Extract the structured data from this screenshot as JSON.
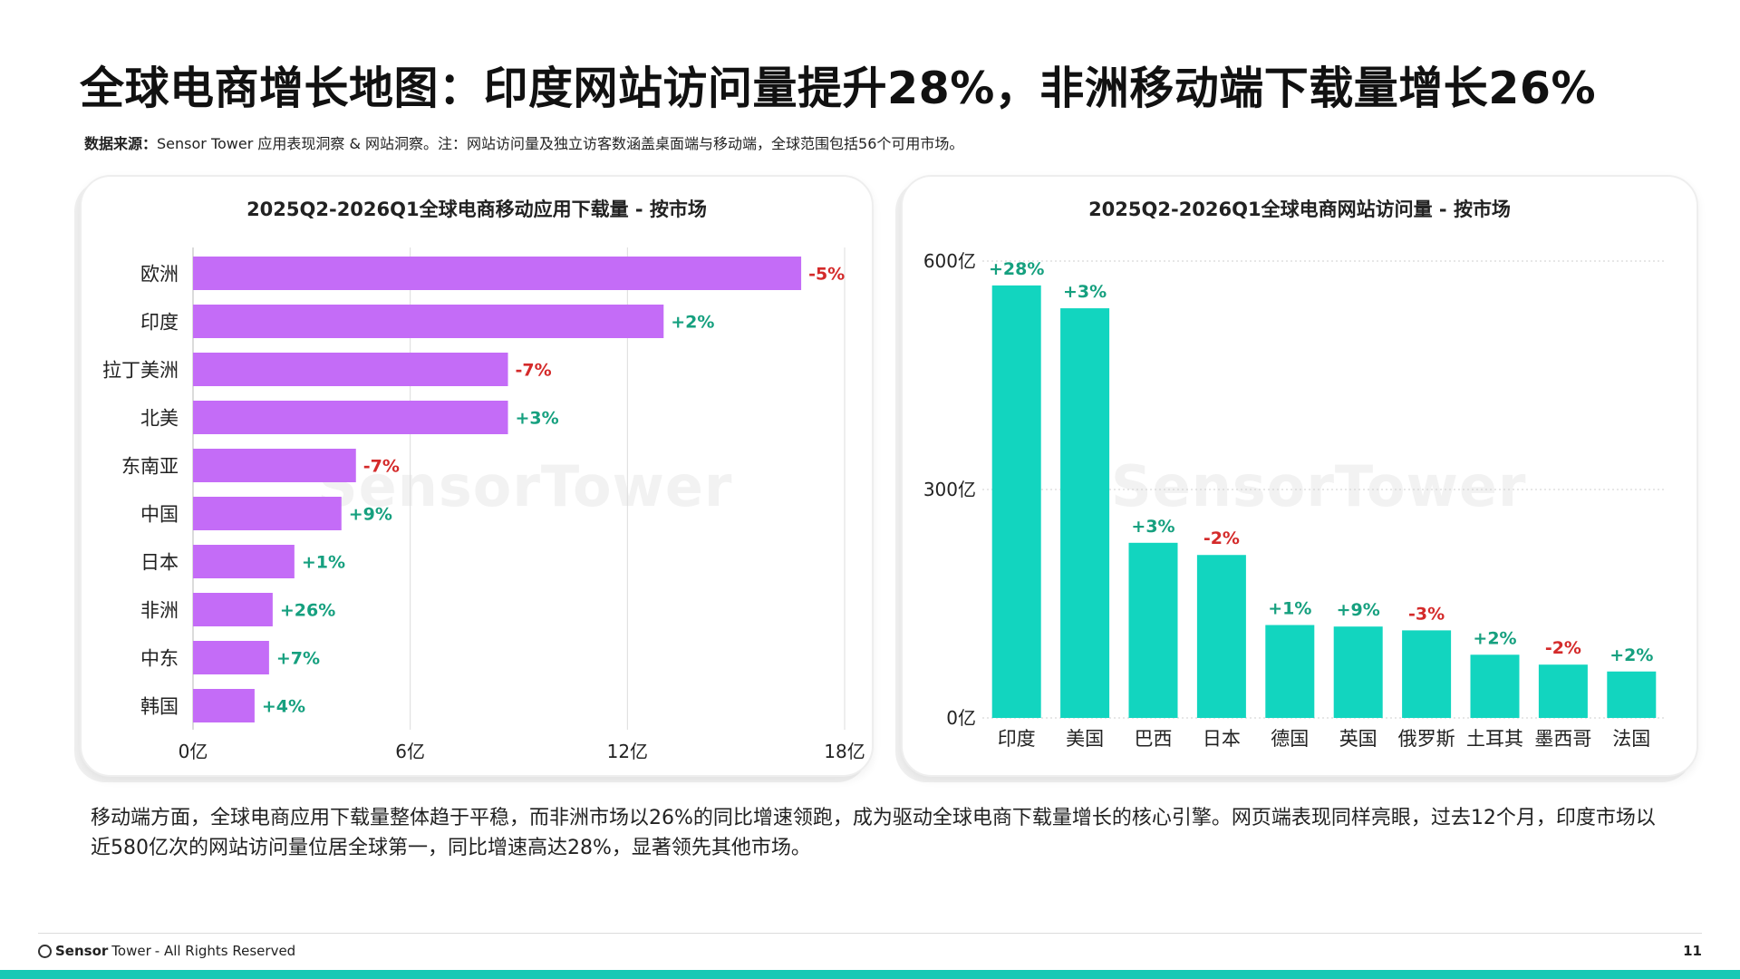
{
  "title": "全球电商增长地图：印度网站访问量提升28%，非洲移动端下载量增长26%",
  "source": {
    "lead": "数据来源：",
    "text": "Sensor Tower 应用表现洞察 & 网站洞察。注：网站访问量及独立访客数涵盖桌面端与移动端，全球范围包括56个可用市场。"
  },
  "summary": "移动端方面，全球电商应用下载量整体趋于平稳，而非洲市场以26%的同比增速领跑，成为驱动全球电商下载量增长的核心引擎。网页端表现同样亮眼，过去12个月，印度市场以近580亿次的网站访问量位居全球第一，同比增速高达28%，显著领先其他市场。",
  "watermark": "SensorTower",
  "footer": {
    "brand_bold": "Sensor",
    "brand_rest": "Tower",
    "rights": " - All Rights Reserved",
    "page": "11"
  },
  "colors": {
    "bar_left": "#c46cf7",
    "bar_right": "#12d5bf",
    "positive": "#16a07f",
    "negative": "#d42a2a",
    "accent": "#18c9b5"
  },
  "chart_data": [
    {
      "type": "bar",
      "orientation": "horizontal",
      "title": "2025Q2-2026Q1全球电商移动应用下载量 - 按市场",
      "categories": [
        "欧洲",
        "印度",
        "拉丁美洲",
        "北美",
        "东南亚",
        "中国",
        "日本",
        "非洲",
        "中东",
        "韩国"
      ],
      "values": [
        16.8,
        13.0,
        8.7,
        8.7,
        4.5,
        4.1,
        2.8,
        2.2,
        2.1,
        1.7
      ],
      "change_labels": [
        "-5%",
        "+2%",
        "-7%",
        "+3%",
        "-7%",
        "+9%",
        "+1%",
        "+26%",
        "+7%",
        "+4%"
      ],
      "xlim": [
        0,
        18
      ],
      "x_ticks": [
        0,
        6,
        12,
        18
      ],
      "x_tick_labels": [
        "0亿",
        "6亿",
        "12亿",
        "18亿"
      ],
      "grid": true
    },
    {
      "type": "bar",
      "orientation": "vertical",
      "title": "2025Q2-2026Q1全球电商网站访问量 - 按市场",
      "categories": [
        "印度",
        "美国",
        "巴西",
        "日本",
        "德国",
        "英国",
        "俄罗斯",
        "土耳其",
        "墨西哥",
        "法国"
      ],
      "values": [
        568,
        538,
        230,
        214,
        122,
        120,
        115,
        83,
        70,
        61
      ],
      "change_labels": [
        "+28%",
        "+3%",
        "+3%",
        "-2%",
        "+1%",
        "+9%",
        "-3%",
        "+2%",
        "-2%",
        "+2%"
      ],
      "ylim": [
        0,
        600
      ],
      "y_ticks": [
        0,
        300,
        600
      ],
      "y_tick_labels": [
        "0亿",
        "300亿",
        "600亿"
      ],
      "grid": true
    }
  ]
}
